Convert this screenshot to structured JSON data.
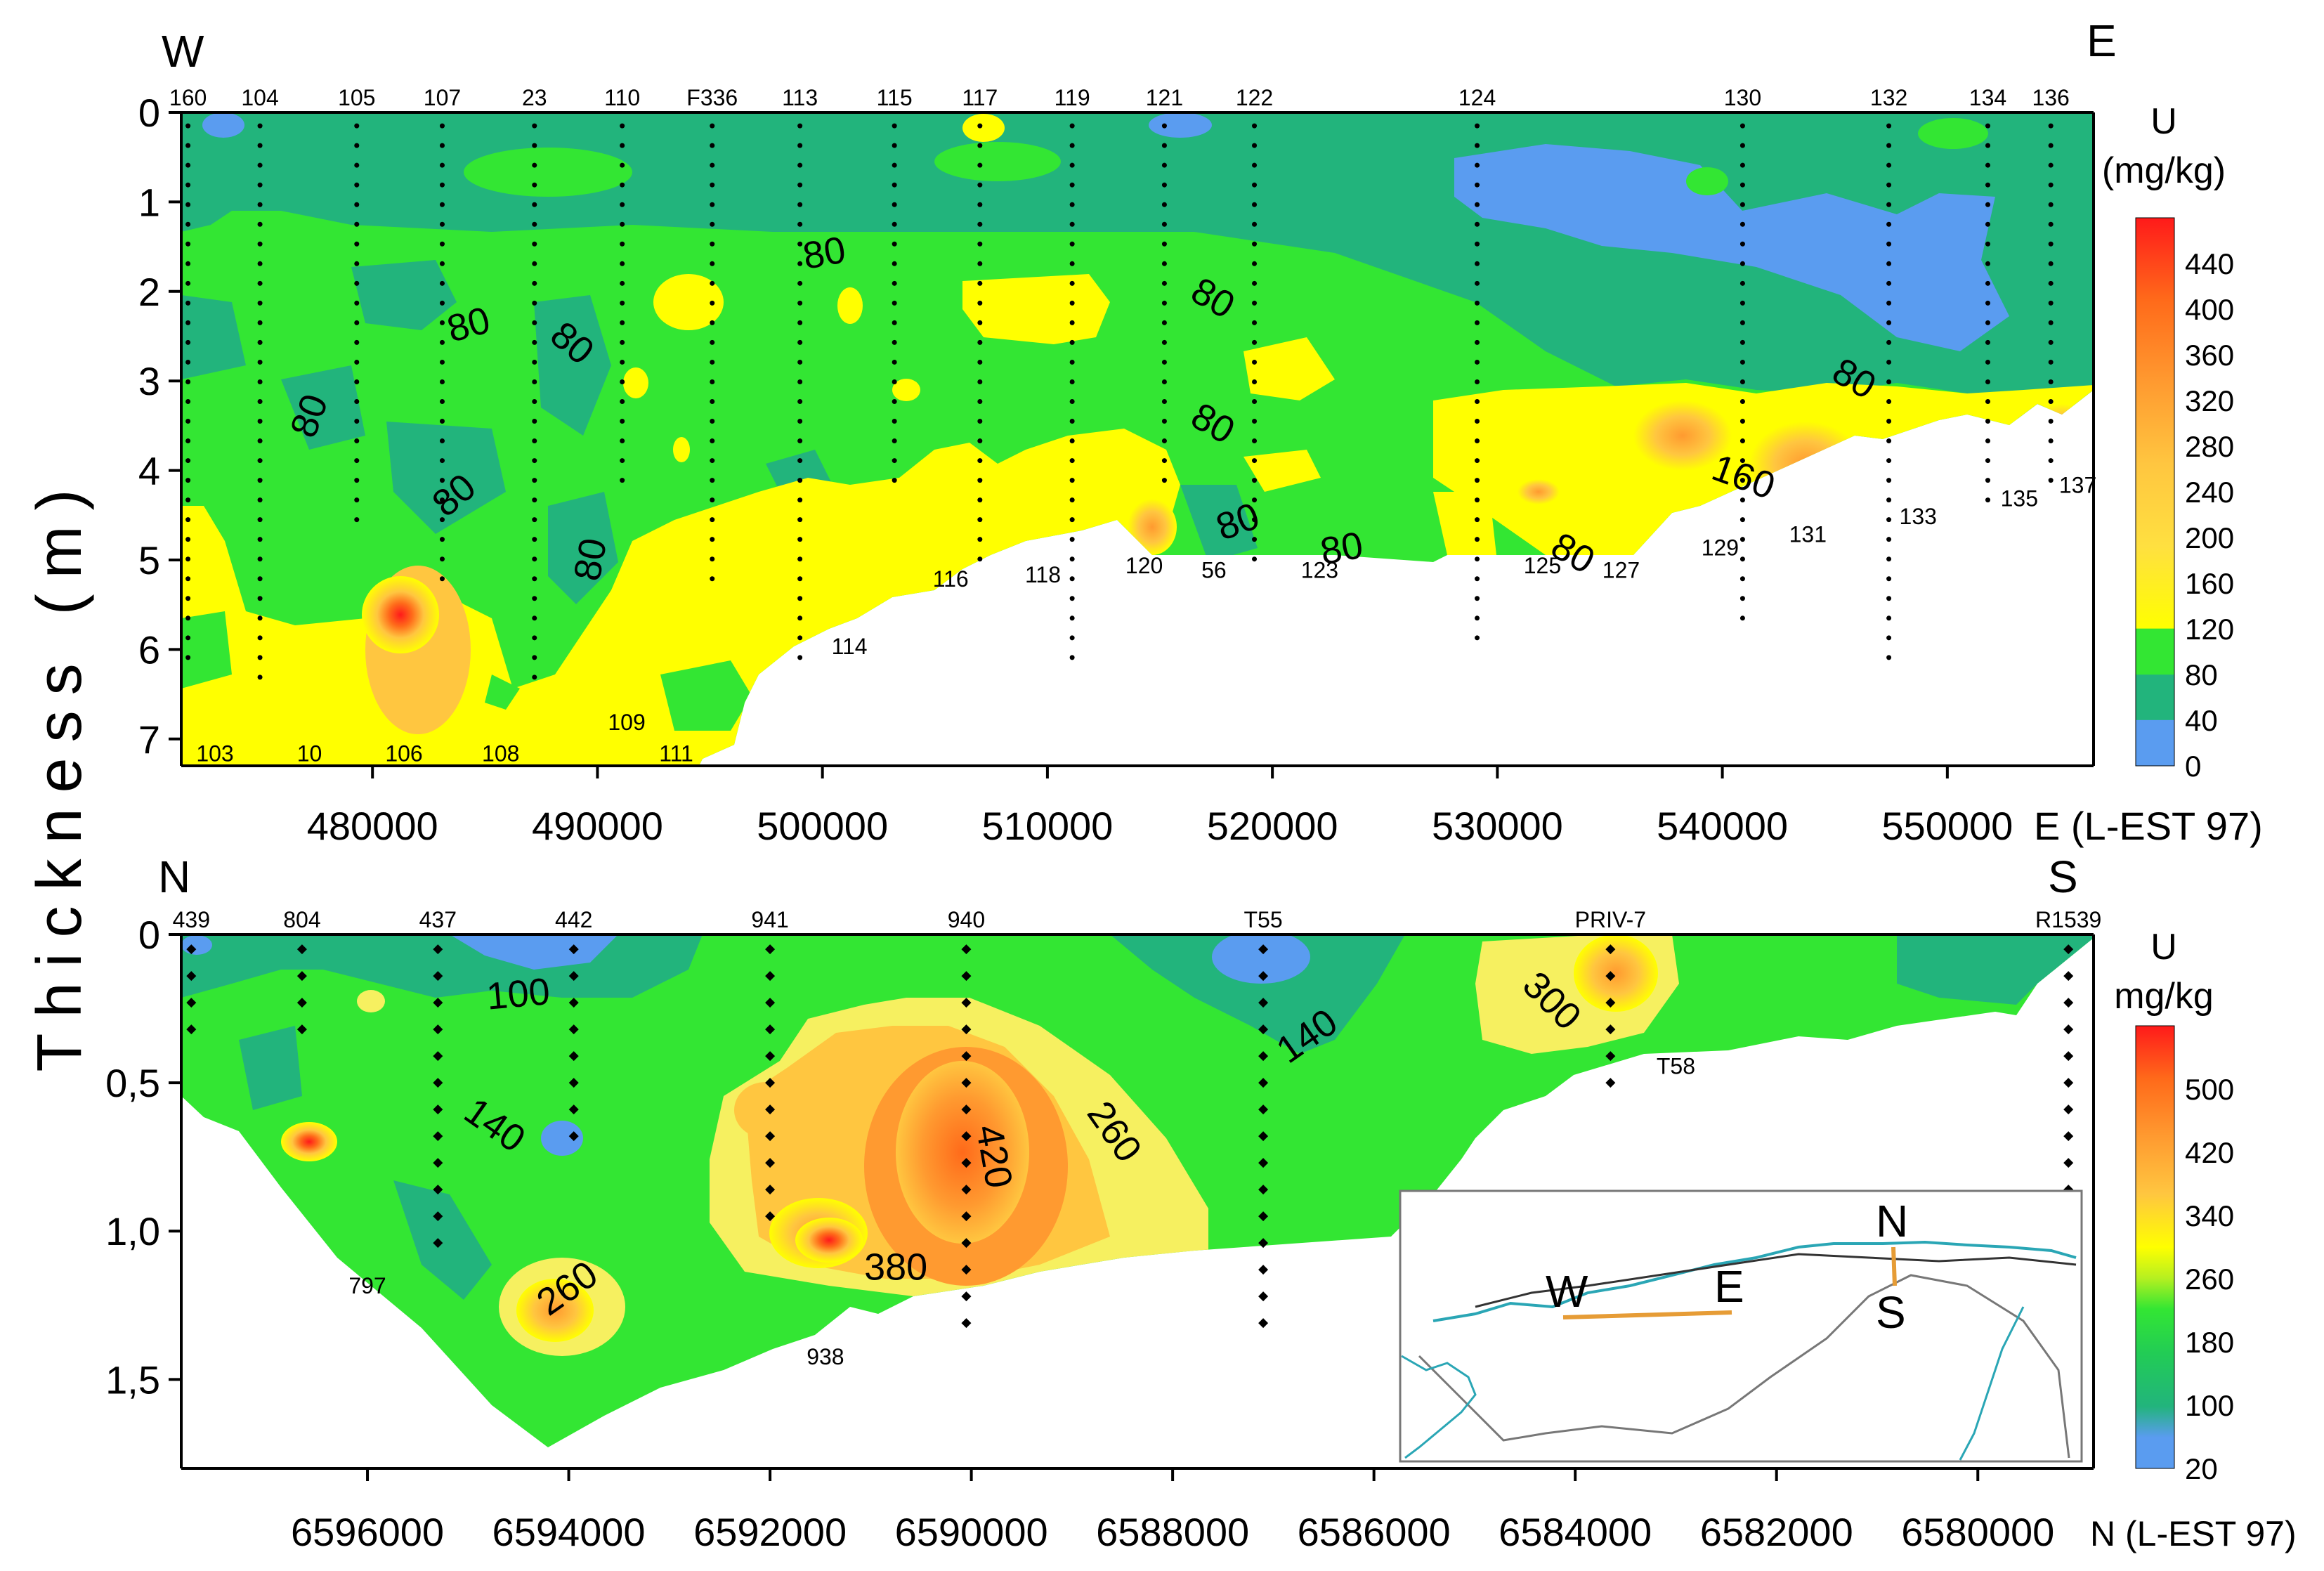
{
  "figure": {
    "y_label": "Thickness (m)",
    "colors": {
      "blue": "#5a9cf0",
      "teal": "#22b47c",
      "green": "#33e633",
      "yellow": "#ffff00",
      "light_yellow": "#f6f060",
      "orange_light": "#ffc640",
      "orange": "#ff9a30",
      "orange_dark": "#ff6a1a",
      "red": "#ff1a1a"
    }
  },
  "chart_data": [
    {
      "type": "heatmap",
      "id": "we-section",
      "dir_left": "W",
      "dir_right": "E",
      "xlabel": "E (L-EST 97)",
      "ylabel": "Thickness (m)",
      "xlim": [
        471500,
        556500
      ],
      "ylim": [
        7.3,
        0
      ],
      "x_ticks": [
        "480000",
        "490000",
        "500000",
        "510000",
        "520000",
        "530000",
        "540000",
        "550000"
      ],
      "x_tick_values": [
        480000,
        490000,
        500000,
        510000,
        520000,
        530000,
        540000,
        550000
      ],
      "y_ticks": [
        "0",
        "1",
        "2",
        "3",
        "4",
        "5",
        "6",
        "7"
      ],
      "y_tick_values": [
        0,
        1,
        2,
        3,
        4,
        5,
        6,
        7
      ],
      "colorbar": {
        "title_line1": "U",
        "title_line2": "(mg/kg)",
        "ticks": [
          "0",
          "40",
          "80",
          "120",
          "160",
          "200",
          "240",
          "280",
          "320",
          "360",
          "400",
          "440"
        ],
        "values": [
          0,
          40,
          80,
          120,
          160,
          200,
          240,
          280,
          320,
          360,
          400,
          440
        ],
        "max": 480
      },
      "top_labels": [
        {
          "label": "160",
          "x": 471800
        },
        {
          "label": "104",
          "x": 475000
        },
        {
          "label": "105",
          "x": 479300
        },
        {
          "label": "107",
          "x": 483100
        },
        {
          "label": "23",
          "x": 487200
        },
        {
          "label": "110",
          "x": 491100
        },
        {
          "label": "F336",
          "x": 495100
        },
        {
          "label": "113",
          "x": 499000
        },
        {
          "label": "115",
          "x": 503200
        },
        {
          "label": "117",
          "x": 507000
        },
        {
          "label": "119",
          "x": 511100
        },
        {
          "label": "121",
          "x": 515200
        },
        {
          "label": "122",
          "x": 519200
        },
        {
          "label": "124",
          "x": 529100
        },
        {
          "label": "130",
          "x": 540900
        },
        {
          "label": "132",
          "x": 547400
        },
        {
          "label": "134",
          "x": 551800
        },
        {
          "label": "136",
          "x": 554600
        }
      ],
      "bottom_labels": [
        {
          "label": "103",
          "x": 473000,
          "y": 7.25
        },
        {
          "label": "10",
          "x": 477200,
          "y": 7.25
        },
        {
          "label": "106",
          "x": 481400,
          "y": 7.25
        },
        {
          "label": "108",
          "x": 485700,
          "y": 7.25
        },
        {
          "label": "109",
          "x": 491300,
          "y": 6.9
        },
        {
          "label": "111",
          "x": 493500,
          "y": 7.25
        },
        {
          "label": "114",
          "x": 501200,
          "y": 6.05
        },
        {
          "label": "116",
          "x": 505700,
          "y": 5.3
        },
        {
          "label": "118",
          "x": 509800,
          "y": 5.25
        },
        {
          "label": "120",
          "x": 514300,
          "y": 5.15
        },
        {
          "label": "56",
          "x": 517400,
          "y": 5.2
        },
        {
          "label": "123",
          "x": 522100,
          "y": 5.2
        },
        {
          "label": "125",
          "x": 532000,
          "y": 5.15
        },
        {
          "label": "127",
          "x": 535500,
          "y": 5.2
        },
        {
          "label": "129",
          "x": 539900,
          "y": 4.95
        },
        {
          "label": "131",
          "x": 543800,
          "y": 4.8
        },
        {
          "label": "133",
          "x": 548700,
          "y": 4.6
        },
        {
          "label": "135",
          "x": 553200,
          "y": 4.4
        },
        {
          "label": "137",
          "x": 555800,
          "y": 4.25
        }
      ],
      "contour_labels": [
        {
          "text": "80",
          "x": 500100,
          "y": 1.6,
          "rot": -10
        },
        {
          "text": "80",
          "x": 484300,
          "y": 2.4,
          "rot": -15
        },
        {
          "text": "80",
          "x": 488800,
          "y": 2.6,
          "rot": 40
        },
        {
          "text": "80",
          "x": 477300,
          "y": 3.4,
          "rot": -70
        },
        {
          "text": "80",
          "x": 483700,
          "y": 4.3,
          "rot": -40
        },
        {
          "text": "80",
          "x": 489800,
          "y": 5.0,
          "rot": -80
        },
        {
          "text": "80",
          "x": 517300,
          "y": 2.1,
          "rot": 30
        },
        {
          "text": "80",
          "x": 517300,
          "y": 3.5,
          "rot": 30
        },
        {
          "text": "80",
          "x": 518500,
          "y": 4.6,
          "rot": -20
        },
        {
          "text": "80",
          "x": 523100,
          "y": 4.9,
          "rot": -10
        },
        {
          "text": "80",
          "x": 533300,
          "y": 4.95,
          "rot": 30
        },
        {
          "text": "80",
          "x": 545800,
          "y": 3.0,
          "rot": 30
        },
        {
          "text": "160",
          "x": 540900,
          "y": 4.1,
          "rot": 20
        }
      ]
    },
    {
      "type": "heatmap",
      "id": "ns-section",
      "dir_left": "N",
      "dir_right": "S",
      "xlabel": "N (L-EST 97)",
      "ylabel": "Thickness (m)",
      "xlim": [
        6597850,
        6578850
      ],
      "ylim": [
        1.8,
        0
      ],
      "x_ticks": [
        "6596000",
        "6594000",
        "6592000",
        "6590000",
        "6588000",
        "6586000",
        "6584000",
        "6582000",
        "6580000"
      ],
      "x_tick_values": [
        6596000,
        6594000,
        6592000,
        6590000,
        6588000,
        6586000,
        6584000,
        6582000,
        6580000
      ],
      "y_ticks": [
        "0",
        "0,5",
        "1,0",
        "1,5"
      ],
      "y_tick_values": [
        0,
        0.5,
        1.0,
        1.5
      ],
      "colorbar": {
        "title_line1": "U",
        "title_line2": "mg/kg",
        "ticks": [
          "20",
          "100",
          "180",
          "260",
          "340",
          "420",
          "500"
        ],
        "values": [
          20,
          100,
          180,
          260,
          340,
          420,
          500
        ],
        "max": 580
      },
      "top_labels": [
        {
          "label": "439",
          "x": 6597750
        },
        {
          "label": "804",
          "x": 6596650
        },
        {
          "label": "437",
          "x": 6595300
        },
        {
          "label": "442",
          "x": 6593950
        },
        {
          "label": "941",
          "x": 6592000
        },
        {
          "label": "940",
          "x": 6590050
        },
        {
          "label": "T55",
          "x": 6587100
        },
        {
          "label": "PRIV-7",
          "x": 6583650
        },
        {
          "label": "R1539",
          "x": 6579100
        }
      ],
      "bottom_labels": [
        {
          "label": "T58",
          "x": 6583000,
          "y": 0.47
        },
        {
          "label": "797",
          "x": 6596000,
          "y": 1.21
        },
        {
          "label": "938",
          "x": 6591450,
          "y": 1.45
        }
      ],
      "contour_labels": [
        {
          "text": "100",
          "x": 6594500,
          "y": 0.21,
          "rot": -5
        },
        {
          "text": "140",
          "x": 6594750,
          "y": 0.65,
          "rot": 35
        },
        {
          "text": "140",
          "x": 6586650,
          "y": 0.35,
          "rot": -35
        },
        {
          "text": "260",
          "x": 6594000,
          "y": 1.2,
          "rot": -35
        },
        {
          "text": "260",
          "x": 6588600,
          "y": 0.67,
          "rot": 55
        },
        {
          "text": "300",
          "x": 6584250,
          "y": 0.23,
          "rot": 45
        },
        {
          "text": "380",
          "x": 6590750,
          "y": 1.13,
          "rot": 0
        },
        {
          "text": "420",
          "x": 6589800,
          "y": 0.75,
          "rot": 80
        }
      ],
      "inset_map": {
        "label_w": "W",
        "label_e": "E",
        "label_n": "N",
        "label_s": "S"
      }
    }
  ]
}
